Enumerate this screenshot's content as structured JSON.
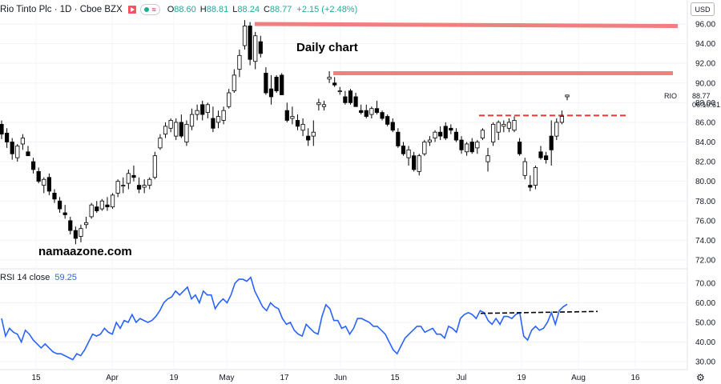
{
  "header": {
    "symbol": "Rio Tinto Plc · 1D · Cboe BZX",
    "open_label": "O",
    "open": "88.60",
    "high_label": "H",
    "high": "88.81",
    "low_label": "L",
    "low": "88.24",
    "close_label": "C",
    "close": "88.77",
    "change": "+2.15 (+2.48%)"
  },
  "currency_button": "USD",
  "annotation_title": "Daily chart",
  "watermark": "namaazone.com",
  "rsi_header": {
    "label": "RSI 14 close",
    "value": "59.25"
  },
  "price_label": {
    "ticker": "RIO",
    "value": "88.77",
    "countdown": "06:10:51"
  },
  "colors": {
    "resistance": "#f08080",
    "dashed_level": "#e53935",
    "rsi_line": "#2962ff",
    "trend_line": "#000000",
    "candle_up": "#ffffff",
    "candle_down": "#000000"
  },
  "chart_data": [
    {
      "type": "candlestick",
      "y_ticks": [
        72,
        74,
        76,
        78,
        80,
        82,
        84,
        86,
        88,
        90,
        92,
        94,
        96
      ],
      "ylim": [
        71,
        97
      ],
      "x_ticks": [
        "15",
        "Apr",
        "19",
        "May",
        "17",
        "Jun",
        "15",
        "Jul",
        "19",
        "Aug",
        "16"
      ],
      "candles": [
        [
          85.8,
          86.2,
          84.3,
          84.8
        ],
        [
          84.9,
          85.4,
          83.4,
          84.0
        ],
        [
          84.0,
          84.4,
          82.2,
          82.8
        ],
        [
          82.4,
          83.8,
          82.0,
          83.6
        ],
        [
          83.8,
          84.8,
          83.2,
          84.4
        ],
        [
          83.0,
          83.6,
          82.6,
          82.6
        ],
        [
          82.0,
          82.4,
          80.8,
          81.2
        ],
        [
          81.0,
          81.4,
          79.8,
          80.0
        ],
        [
          79.6,
          80.4,
          78.8,
          80.2
        ],
        [
          80.4,
          80.8,
          78.6,
          79.0
        ],
        [
          78.8,
          79.2,
          77.8,
          78.2
        ],
        [
          78.0,
          78.4,
          76.8,
          77.2
        ],
        [
          76.8,
          77.6,
          76.2,
          76.6
        ],
        [
          76.0,
          76.4,
          74.6,
          75.0
        ],
        [
          75.0,
          75.4,
          73.6,
          74.2
        ],
        [
          74.4,
          75.6,
          73.8,
          75.2
        ],
        [
          75.6,
          76.4,
          75.2,
          75.8
        ],
        [
          76.4,
          77.8,
          76.2,
          77.6
        ],
        [
          77.4,
          78.0,
          76.8,
          77.0
        ],
        [
          77.2,
          78.2,
          77.0,
          78.0
        ],
        [
          77.6,
          78.4,
          77.0,
          77.4
        ],
        [
          77.4,
          78.8,
          77.2,
          78.6
        ],
        [
          78.8,
          80.2,
          78.4,
          80.0
        ],
        [
          79.6,
          80.4,
          78.8,
          79.6
        ],
        [
          79.8,
          81.2,
          79.2,
          80.8
        ],
        [
          80.6,
          81.6,
          80.0,
          80.4
        ],
        [
          79.6,
          80.4,
          78.8,
          79.2
        ],
        [
          79.4,
          80.2,
          78.8,
          79.6
        ],
        [
          79.6,
          80.4,
          79.2,
          80.2
        ],
        [
          80.4,
          83.0,
          80.2,
          82.6
        ],
        [
          83.4,
          84.8,
          83.2,
          84.4
        ],
        [
          84.8,
          86.0,
          84.4,
          85.6
        ],
        [
          85.4,
          86.4,
          85.0,
          86.2
        ],
        [
          84.6,
          86.4,
          84.2,
          86.0
        ],
        [
          86.0,
          86.8,
          84.4,
          84.6
        ],
        [
          84.0,
          86.2,
          83.6,
          85.8
        ],
        [
          85.6,
          87.4,
          85.2,
          86.8
        ],
        [
          86.8,
          87.8,
          86.2,
          87.2
        ],
        [
          87.8,
          88.2,
          86.2,
          86.8
        ],
        [
          87.0,
          88.0,
          86.4,
          87.8
        ],
        [
          86.4,
          87.6,
          85.0,
          85.4
        ],
        [
          86.0,
          87.2,
          85.4,
          86.6
        ],
        [
          86.2,
          87.6,
          85.8,
          87.2
        ],
        [
          87.6,
          89.4,
          87.4,
          89.0
        ],
        [
          89.2,
          91.4,
          89.0,
          90.8
        ],
        [
          91.4,
          93.4,
          90.6,
          92.8
        ],
        [
          93.8,
          96.4,
          93.4,
          95.8
        ],
        [
          95.8,
          96.2,
          91.8,
          92.4
        ],
        [
          92.2,
          95.2,
          91.4,
          94.8
        ],
        [
          94.2,
          94.8,
          92.6,
          93.0
        ],
        [
          91.0,
          91.6,
          88.8,
          89.0
        ],
        [
          89.4,
          90.8,
          87.8,
          88.6
        ],
        [
          90.6,
          90.8,
          89.0,
          89.2
        ],
        [
          90.8,
          91.0,
          88.8,
          88.8
        ],
        [
          87.2,
          88.0,
          86.0,
          86.2
        ],
        [
          86.4,
          87.6,
          85.8,
          86.6
        ],
        [
          86.2,
          86.8,
          85.2,
          85.6
        ],
        [
          85.2,
          86.4,
          84.6,
          85.8
        ],
        [
          84.6,
          85.4,
          83.6,
          84.2
        ],
        [
          84.6,
          86.2,
          83.6,
          85.0
        ],
        [
          87.8,
          88.4,
          87.2,
          88.0
        ],
        [
          87.6,
          88.2,
          87.2,
          87.8
        ],
        [
          90.4,
          91.2,
          90.0,
          90.6
        ],
        [
          90.0,
          90.6,
          89.6,
          89.8
        ],
        [
          89.2,
          89.6,
          88.8,
          89.2
        ],
        [
          88.6,
          89.2,
          87.8,
          88.0
        ],
        [
          89.2,
          89.4,
          87.8,
          88.0
        ],
        [
          88.6,
          89.0,
          87.6,
          87.6
        ],
        [
          87.2,
          87.8,
          86.8,
          87.0
        ],
        [
          87.2,
          87.8,
          86.4,
          86.6
        ],
        [
          86.8,
          87.6,
          86.4,
          87.4
        ],
        [
          87.4,
          88.2,
          86.8,
          87.0
        ],
        [
          87.0,
          87.2,
          86.2,
          86.4
        ],
        [
          86.6,
          86.8,
          85.6,
          85.8
        ],
        [
          86.0,
          86.4,
          85.0,
          85.2
        ],
        [
          85.0,
          85.4,
          83.4,
          83.6
        ],
        [
          83.6,
          84.0,
          82.6,
          82.8
        ],
        [
          82.4,
          83.6,
          81.6,
          83.2
        ],
        [
          82.6,
          83.0,
          81.0,
          81.2
        ],
        [
          81.0,
          82.8,
          80.6,
          82.6
        ],
        [
          82.8,
          84.2,
          82.6,
          84.0
        ],
        [
          84.0,
          84.6,
          83.6,
          84.2
        ],
        [
          84.4,
          85.2,
          84.0,
          85.0
        ],
        [
          85.0,
          85.6,
          84.2,
          84.6
        ],
        [
          85.6,
          86.0,
          84.2,
          84.4
        ],
        [
          85.4,
          85.8,
          84.8,
          85.2
        ],
        [
          85.0,
          85.4,
          84.0,
          84.2
        ],
        [
          84.2,
          84.6,
          82.8,
          83.2
        ],
        [
          83.0,
          84.0,
          82.6,
          83.8
        ],
        [
          84.0,
          84.4,
          82.8,
          83.0
        ],
        [
          83.4,
          84.2,
          82.8,
          84.0
        ],
        [
          84.4,
          85.4,
          84.2,
          85.2
        ],
        [
          82.0,
          83.4,
          81.0,
          82.6
        ],
        [
          84.0,
          86.0,
          83.6,
          85.8
        ],
        [
          85.0,
          86.2,
          84.2,
          86.0
        ],
        [
          85.6,
          86.2,
          85.0,
          85.8
        ],
        [
          85.4,
          86.4,
          85.0,
          86.0
        ],
        [
          85.2,
          86.6,
          85.0,
          86.2
        ],
        [
          84.0,
          84.4,
          82.6,
          82.8
        ],
        [
          80.6,
          82.4,
          80.2,
          82.0
        ],
        [
          79.6,
          80.6,
          79.0,
          79.4
        ],
        [
          79.6,
          81.6,
          79.2,
          81.4
        ],
        [
          83.0,
          83.6,
          82.2,
          82.4
        ],
        [
          82.6,
          83.0,
          81.8,
          82.2
        ],
        [
          84.6,
          86.2,
          81.6,
          83.2
        ],
        [
          84.6,
          86.4,
          84.2,
          86.0
        ],
        [
          86.0,
          87.2,
          85.8,
          86.6
        ],
        [
          88.6,
          88.81,
          88.24,
          88.77
        ]
      ],
      "resistance_lines": [
        96.0,
        91.0
      ],
      "dashed_level": 86.7
    },
    {
      "type": "line",
      "name": "RSI 14 close",
      "y_ticks": [
        30,
        40,
        50,
        60,
        70
      ],
      "ylim": [
        27,
        74
      ],
      "values": [
        52,
        43,
        47,
        45,
        44,
        40,
        46,
        44,
        41,
        39,
        37,
        39,
        37,
        35,
        34,
        34,
        33,
        32,
        31,
        34,
        33,
        36,
        40,
        44,
        43,
        44,
        47,
        45,
        44,
        50,
        47,
        51,
        50,
        54,
        50,
        52,
        51,
        50,
        51,
        53,
        56,
        60,
        62,
        63,
        66,
        64,
        66,
        68,
        62,
        64,
        60,
        66,
        64,
        64,
        57,
        60,
        62,
        60,
        64,
        70,
        72,
        72,
        71,
        73,
        66,
        62,
        58,
        56,
        60,
        58,
        57,
        52,
        49,
        50,
        46,
        44,
        43,
        49,
        47,
        45,
        44,
        53,
        59,
        57,
        51,
        51,
        47,
        48,
        44,
        47,
        52,
        52,
        51,
        50,
        48,
        48,
        46,
        44,
        40,
        36,
        34,
        38,
        42,
        44,
        46,
        48,
        48,
        45,
        46,
        47,
        44,
        44,
        42,
        48,
        47,
        45,
        52,
        54,
        55,
        54,
        52,
        56,
        55,
        51,
        49,
        52,
        49,
        53,
        53,
        52,
        54,
        55,
        43,
        41,
        46,
        48,
        46,
        47,
        50,
        55,
        49,
        56,
        58,
        59.25
      ]
    }
  ]
}
